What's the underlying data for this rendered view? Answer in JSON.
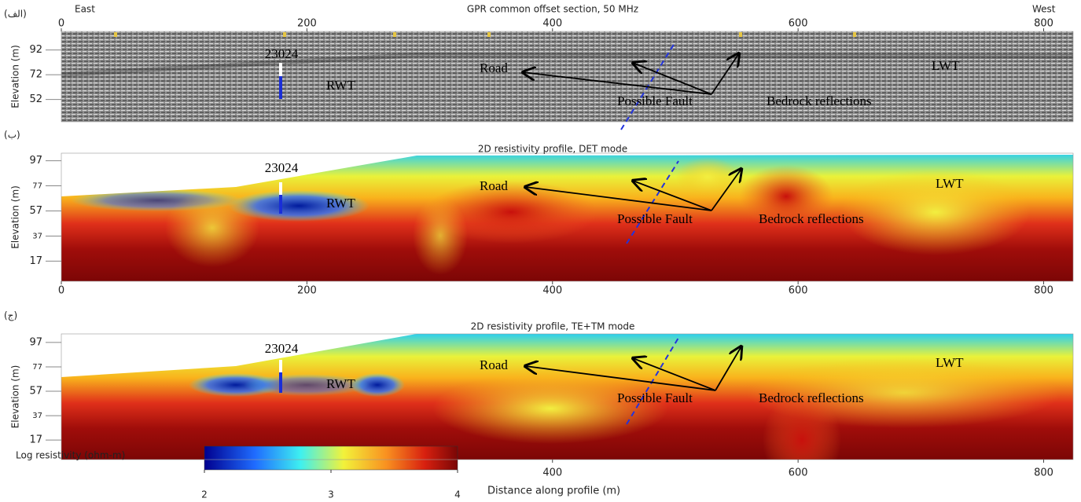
{
  "chart_data": [
    {
      "type": "gpr-section",
      "panel_label": "(الف)",
      "title": "GPR common offset section, 50 MHz",
      "left_end": "East",
      "right_end": "West",
      "ylabel": "Elevation (m)",
      "xlim": [
        0,
        824
      ],
      "xticks": [
        0,
        200,
        400,
        600,
        800
      ],
      "ylim": [
        34,
        107
      ],
      "yticks": [
        52,
        72,
        92
      ],
      "annotations": [
        "23024",
        "RWT",
        "Road",
        "Possible Fault",
        "Bedrock reflections",
        "LWT"
      ]
    },
    {
      "type": "resistivity-section",
      "panel_label": "(ب)",
      "title": "2D resistivity profile, DET mode",
      "ylabel": "Elevation (m)",
      "xlim": [
        0,
        824
      ],
      "xticks": [
        0,
        200,
        400,
        600,
        800
      ],
      "ylim": [
        1,
        103
      ],
      "yticks": [
        17,
        37,
        57,
        77,
        97
      ],
      "annotations": [
        "23024",
        "RWT",
        "Road",
        "Possible Fault",
        "Bedrock reflections",
        "LWT"
      ]
    },
    {
      "type": "resistivity-section",
      "panel_label": "(ج)",
      "title": "2D resistivity profile, TE+TM mode",
      "ylabel": "Elevation (m)",
      "xlabel": "Distance along profile (m)",
      "xlim": [
        0,
        824
      ],
      "xticks": [
        400,
        600,
        800
      ],
      "ylim": [
        1,
        104
      ],
      "yticks": [
        17,
        37,
        57,
        77,
        97
      ],
      "annotations": [
        "23024",
        "RWT",
        "Road",
        "Possible Fault",
        "Bedrock reflections",
        "LWT"
      ],
      "colorbar": {
        "label": "Log resistivity (ohm-m)",
        "lim": [
          2,
          4
        ],
        "ticks": [
          2,
          3,
          4
        ]
      }
    }
  ]
}
